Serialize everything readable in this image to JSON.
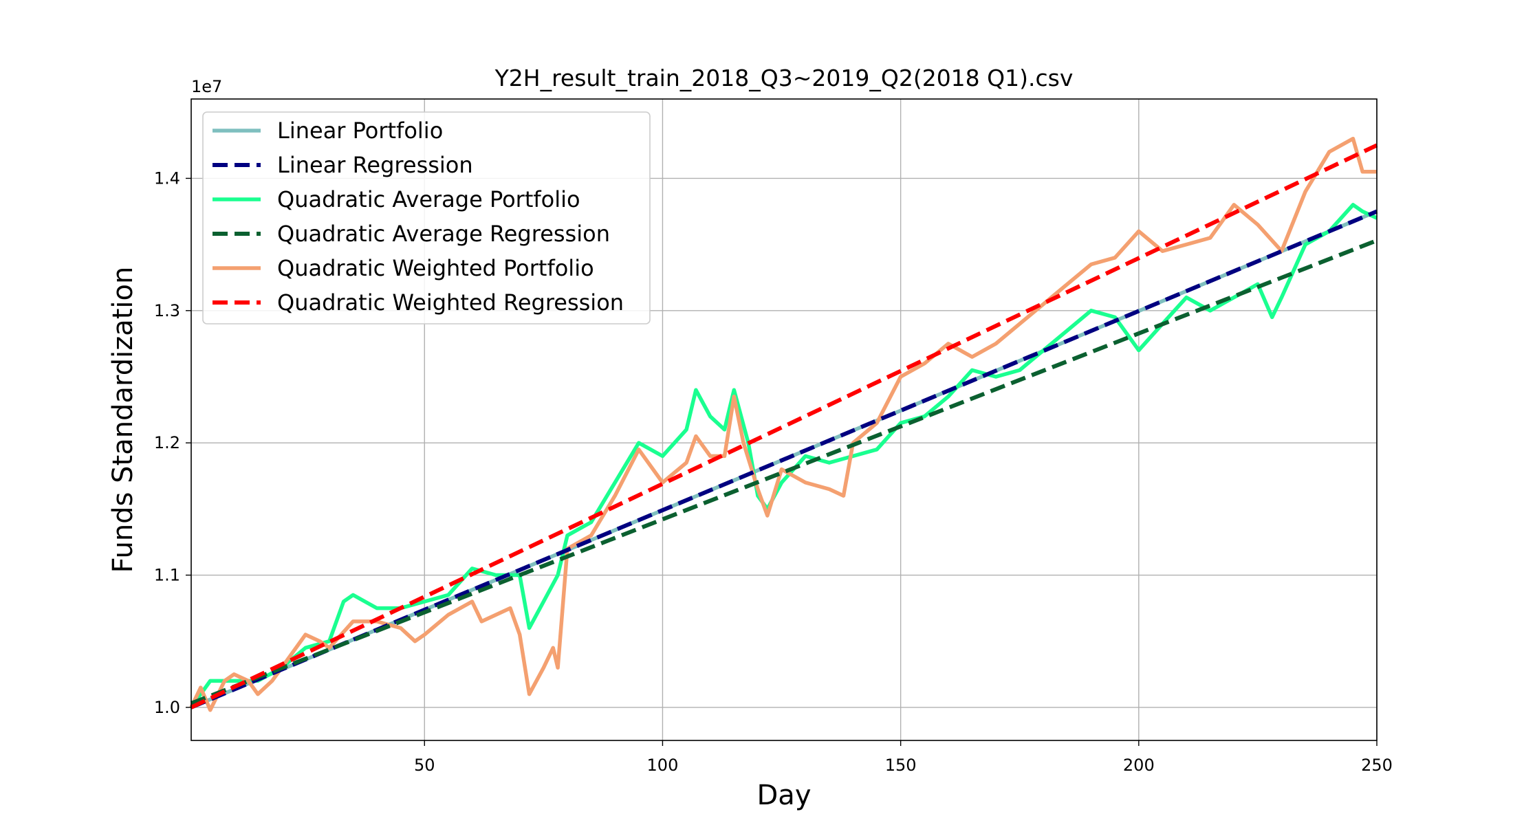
{
  "chart_data": {
    "type": "line",
    "title": "Y2H_result_train_2018_Q3~2019_Q2(2018 Q1).csv",
    "xlabel": "Day",
    "ylabel": "Funds Standardization",
    "y_offset_label": "1e7",
    "xlim": [
      1,
      250
    ],
    "ylim": [
      0.975,
      1.46
    ],
    "x_ticks": [
      50,
      100,
      150,
      200,
      250
    ],
    "y_ticks": [
      1.0,
      1.1,
      1.2,
      1.3,
      1.4
    ],
    "y_tick_labels": [
      "1.0",
      "1.1",
      "1.2",
      "1.3",
      "1.4"
    ],
    "grid": true,
    "legend_position": "upper-left",
    "series": [
      {
        "name": "Linear Portfolio",
        "style": "solid",
        "color": "#7fbfbf",
        "x": [
          1,
          250
        ],
        "y": [
          1.0,
          1.375
        ]
      },
      {
        "name": "Linear Regression",
        "style": "dashed",
        "color": "#000080",
        "x": [
          1,
          250
        ],
        "y": [
          1.0,
          1.375
        ]
      },
      {
        "name": "Quadratic Average Portfolio",
        "style": "solid",
        "color": "#1aff90",
        "x": [
          1,
          5,
          10,
          15,
          20,
          25,
          30,
          33,
          35,
          40,
          45,
          50,
          55,
          60,
          65,
          70,
          72,
          75,
          78,
          80,
          85,
          90,
          95,
          100,
          105,
          107,
          110,
          113,
          115,
          118,
          120,
          122,
          125,
          130,
          135,
          140,
          145,
          150,
          155,
          160,
          165,
          170,
          175,
          180,
          185,
          190,
          195,
          200,
          205,
          210,
          215,
          220,
          225,
          228,
          230,
          235,
          240,
          245,
          247,
          250
        ],
        "y": [
          1.0,
          1.02,
          1.02,
          1.02,
          1.03,
          1.045,
          1.05,
          1.08,
          1.085,
          1.075,
          1.075,
          1.08,
          1.085,
          1.105,
          1.1,
          1.1,
          1.06,
          1.08,
          1.1,
          1.13,
          1.14,
          1.17,
          1.2,
          1.19,
          1.21,
          1.24,
          1.22,
          1.21,
          1.24,
          1.2,
          1.16,
          1.15,
          1.17,
          1.19,
          1.185,
          1.19,
          1.195,
          1.215,
          1.22,
          1.235,
          1.255,
          1.25,
          1.255,
          1.27,
          1.285,
          1.3,
          1.295,
          1.27,
          1.29,
          1.31,
          1.3,
          1.31,
          1.32,
          1.295,
          1.31,
          1.35,
          1.36,
          1.38,
          1.375,
          1.37
        ]
      },
      {
        "name": "Quadratic Average Regression",
        "style": "dashed",
        "color": "#0b6030",
        "x": [
          1,
          250
        ],
        "y": [
          1.003,
          1.353
        ]
      },
      {
        "name": "Quadratic Weighted Portfolio",
        "style": "solid",
        "color": "#f4a070",
        "x": [
          1,
          3,
          5,
          8,
          10,
          13,
          15,
          18,
          20,
          25,
          28,
          30,
          35,
          40,
          45,
          48,
          50,
          55,
          60,
          62,
          65,
          68,
          70,
          72,
          75,
          77,
          78,
          80,
          85,
          90,
          95,
          100,
          105,
          107,
          110,
          113,
          115,
          117,
          120,
          122,
          125,
          130,
          135,
          138,
          140,
          145,
          150,
          155,
          160,
          165,
          170,
          175,
          180,
          185,
          190,
          195,
          200,
          205,
          210,
          215,
          220,
          225,
          230,
          235,
          240,
          245,
          247,
          250
        ],
        "y": [
          1.0,
          1.015,
          0.998,
          1.02,
          1.025,
          1.02,
          1.01,
          1.02,
          1.03,
          1.055,
          1.05,
          1.045,
          1.065,
          1.065,
          1.06,
          1.05,
          1.055,
          1.07,
          1.08,
          1.065,
          1.07,
          1.075,
          1.055,
          1.01,
          1.03,
          1.045,
          1.03,
          1.12,
          1.13,
          1.16,
          1.195,
          1.17,
          1.185,
          1.205,
          1.19,
          1.19,
          1.235,
          1.2,
          1.165,
          1.145,
          1.18,
          1.17,
          1.165,
          1.16,
          1.2,
          1.215,
          1.25,
          1.26,
          1.275,
          1.265,
          1.275,
          1.29,
          1.305,
          1.32,
          1.335,
          1.34,
          1.36,
          1.345,
          1.35,
          1.355,
          1.38,
          1.365,
          1.345,
          1.39,
          1.42,
          1.43,
          1.405,
          1.405
        ]
      },
      {
        "name": "Quadratic Weighted Regression",
        "style": "dashed",
        "color": "#ff0000",
        "x": [
          1,
          250
        ],
        "y": [
          1.0,
          1.425
        ]
      }
    ]
  }
}
